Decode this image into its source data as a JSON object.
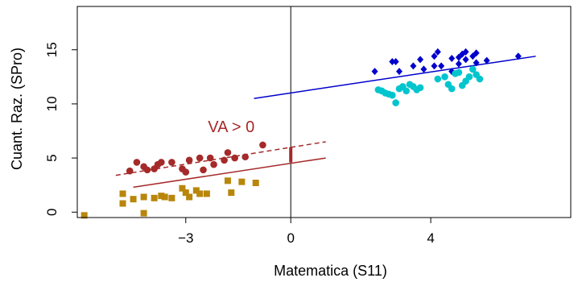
{
  "chart_data": {
    "type": "scatter",
    "xlabel": "Matematica (S11)",
    "ylabel": "Cuant. Raz. (SPro)",
    "xlim": [
      -6.1,
      8.0
    ],
    "ylim": [
      -0.5,
      19.0
    ],
    "x_ticks": [
      {
        "value": -3,
        "label": "−3"
      },
      {
        "value": 0,
        "label": "0"
      },
      {
        "value": 4,
        "label": "4"
      }
    ],
    "y_ticks": [
      {
        "value": 0,
        "label": "0"
      },
      {
        "value": 5,
        "label": "5"
      },
      {
        "value": 10,
        "label": "10"
      },
      {
        "value": 15,
        "label": "15"
      }
    ],
    "vline_x": 0,
    "grid": false,
    "annotation": {
      "text": "VA > 0",
      "x": -1.7,
      "y": 7.4,
      "color": "#a52a2a"
    },
    "colors": {
      "red": "#a52a2a",
      "gold": "#b8860b",
      "blue": "#0000cd",
      "cyan": "#00c5cd"
    },
    "series": [
      {
        "color": "red",
        "marker": "circle",
        "points": [
          [
            -4.6,
            3.8
          ],
          [
            -4.4,
            4.6
          ],
          [
            -4.2,
            4.2
          ],
          [
            -4.1,
            3.9
          ],
          [
            -3.9,
            4.0
          ],
          [
            -3.8,
            4.4
          ],
          [
            -3.7,
            4.6
          ],
          [
            -3.4,
            4.6
          ],
          [
            -3.1,
            4.0
          ],
          [
            -3.0,
            3.7
          ],
          [
            -2.9,
            4.8
          ],
          [
            -2.6,
            5.0
          ],
          [
            -2.5,
            3.9
          ],
          [
            -2.3,
            5.0
          ],
          [
            -2.2,
            4.4
          ],
          [
            -1.9,
            4.8
          ],
          [
            -1.8,
            5.5
          ],
          [
            -1.6,
            5.0
          ],
          [
            -1.3,
            5.1
          ],
          [
            -0.8,
            6.2
          ]
        ]
      },
      {
        "color": "gold",
        "marker": "square",
        "points": [
          [
            -5.9,
            -0.3
          ],
          [
            -4.8,
            1.7
          ],
          [
            -4.8,
            0.8
          ],
          [
            -4.5,
            1.2
          ],
          [
            -4.2,
            1.4
          ],
          [
            -4.2,
            -0.1
          ],
          [
            -3.9,
            1.3
          ],
          [
            -3.7,
            1.5
          ],
          [
            -3.6,
            1.4
          ],
          [
            -3.4,
            1.3
          ],
          [
            -3.1,
            2.2
          ],
          [
            -3.0,
            1.8
          ],
          [
            -2.9,
            1.4
          ],
          [
            -2.7,
            2.0
          ],
          [
            -2.6,
            1.7
          ],
          [
            -2.4,
            1.7
          ],
          [
            -1.8,
            2.9
          ],
          [
            -1.7,
            1.8
          ],
          [
            -1.4,
            2.8
          ],
          [
            -1.0,
            2.7
          ]
        ]
      },
      {
        "color": "blue",
        "marker": "diamond",
        "points": [
          [
            2.4,
            13.0
          ],
          [
            2.9,
            13.9
          ],
          [
            3.0,
            13.9
          ],
          [
            3.1,
            13.0
          ],
          [
            3.5,
            13.5
          ],
          [
            3.7,
            14.1
          ],
          [
            3.8,
            13.2
          ],
          [
            4.1,
            13.5
          ],
          [
            4.1,
            14.4
          ],
          [
            4.2,
            14.8
          ],
          [
            4.3,
            13.5
          ],
          [
            4.6,
            14.2
          ],
          [
            4.6,
            13.0
          ],
          [
            4.8,
            13.7
          ],
          [
            4.8,
            14.3
          ],
          [
            4.9,
            14.6
          ],
          [
            5.0,
            14.1
          ],
          [
            5.0,
            14.8
          ],
          [
            5.2,
            14.4
          ],
          [
            5.3,
            14.7
          ],
          [
            5.3,
            13.8
          ],
          [
            5.6,
            14.0
          ],
          [
            6.5,
            14.4
          ]
        ]
      },
      {
        "color": "cyan",
        "marker": "circle",
        "points": [
          [
            2.5,
            11.3
          ],
          [
            2.6,
            11.2
          ],
          [
            2.7,
            11.0
          ],
          [
            2.8,
            10.9
          ],
          [
            2.9,
            10.8
          ],
          [
            3.0,
            10.1
          ],
          [
            3.1,
            11.4
          ],
          [
            3.2,
            11.6
          ],
          [
            3.3,
            11.2
          ],
          [
            3.4,
            11.8
          ],
          [
            3.5,
            11.6
          ],
          [
            3.6,
            11.3
          ],
          [
            3.7,
            11.5
          ],
          [
            4.2,
            12.3
          ],
          [
            4.4,
            12.5
          ],
          [
            4.5,
            11.8
          ],
          [
            4.6,
            11.4
          ],
          [
            4.7,
            12.8
          ],
          [
            4.8,
            12.9
          ],
          [
            4.9,
            11.7
          ],
          [
            5.0,
            12.1
          ],
          [
            5.1,
            12.5
          ],
          [
            5.2,
            13.2
          ],
          [
            5.3,
            12.7
          ],
          [
            5.4,
            12.3
          ]
        ]
      }
    ],
    "lines": [
      {
        "color": "blue",
        "style": "solid",
        "x": [
          -1.05,
          7.0
        ],
        "y": [
          10.5,
          14.4
        ]
      },
      {
        "color": "red",
        "style": "solid",
        "x": [
          -4.5,
          1.0
        ],
        "y": [
          2.3,
          5.0
        ]
      },
      {
        "color": "red",
        "style": "dashed",
        "x": [
          -5.0,
          1.0
        ],
        "y": [
          3.4,
          6.5
        ]
      },
      {
        "color": "red",
        "style": "solid",
        "width": 4,
        "x": [
          0,
          0
        ],
        "y": [
          4.6,
          6.0
        ]
      }
    ]
  }
}
